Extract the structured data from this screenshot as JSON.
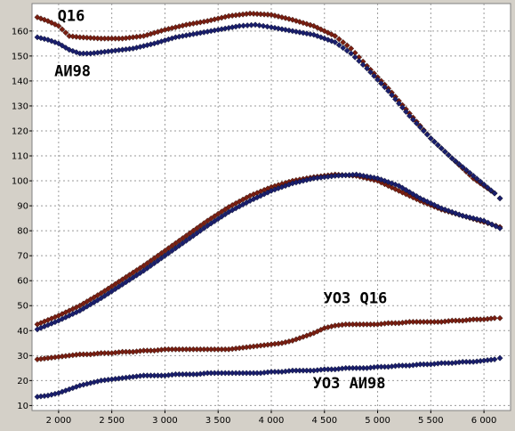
{
  "chart_data": {
    "type": "scatter",
    "title": "",
    "xlabel": "",
    "ylabel": "",
    "xlim": [
      1750,
      6250
    ],
    "ylim": [
      8,
      171
    ],
    "grid": true,
    "x_ticks": [
      2000,
      2500,
      3000,
      3500,
      4000,
      4500,
      5000,
      5500,
      6000
    ],
    "x_tick_labels": [
      "2 000",
      "2 500",
      "3 000",
      "3 500",
      "4 000",
      "4 500",
      "5 000",
      "5 500",
      "6 000"
    ],
    "y_ticks": [
      10,
      20,
      30,
      40,
      50,
      60,
      70,
      80,
      90,
      100,
      110,
      120,
      130,
      140,
      150,
      160
    ],
    "y_tick_labels": [
      "10",
      "20",
      "30",
      "40",
      "50",
      "60",
      "70",
      "80",
      "90",
      "100",
      "110",
      "120",
      "130",
      "140",
      "150",
      "160"
    ],
    "series": [
      {
        "color": "#7a1f12",
        "points": [
          [
            1800,
            165.5
          ],
          [
            1900,
            164
          ],
          [
            2000,
            162
          ],
          [
            2100,
            158
          ],
          [
            2200,
            157.5
          ],
          [
            2400,
            157
          ],
          [
            2600,
            157
          ],
          [
            2800,
            158
          ],
          [
            3000,
            160.5
          ],
          [
            3200,
            162.5
          ],
          [
            3400,
            164
          ],
          [
            3600,
            166
          ],
          [
            3800,
            167
          ],
          [
            4000,
            166.5
          ],
          [
            4200,
            164.5
          ],
          [
            4400,
            162
          ],
          [
            4600,
            158
          ],
          [
            4750,
            153
          ],
          [
            4900,
            146
          ],
          [
            5100,
            137
          ],
          [
            5300,
            127
          ],
          [
            5500,
            117
          ],
          [
            5700,
            109
          ],
          [
            5900,
            101
          ],
          [
            6100,
            95
          ],
          [
            6150,
            93
          ]
        ]
      },
      {
        "color": "#1a1f6e",
        "points": [
          [
            1800,
            157.5
          ],
          [
            1900,
            156.5
          ],
          [
            2000,
            155
          ],
          [
            2100,
            152.5
          ],
          [
            2200,
            151
          ],
          [
            2300,
            151
          ],
          [
            2500,
            152
          ],
          [
            2700,
            153
          ],
          [
            2900,
            155
          ],
          [
            3100,
            157.5
          ],
          [
            3300,
            159
          ],
          [
            3500,
            160.5
          ],
          [
            3700,
            162
          ],
          [
            3850,
            162.5
          ],
          [
            4000,
            161.5
          ],
          [
            4200,
            160
          ],
          [
            4400,
            158.5
          ],
          [
            4600,
            155.5
          ],
          [
            4750,
            151
          ],
          [
            4900,
            145
          ],
          [
            5100,
            136
          ],
          [
            5300,
            126
          ],
          [
            5500,
            117
          ],
          [
            5700,
            109
          ],
          [
            5900,
            102
          ],
          [
            6100,
            95
          ],
          [
            6150,
            93
          ]
        ]
      },
      {
        "color": "#7a1f12",
        "points": [
          [
            1800,
            42.5
          ],
          [
            2000,
            46
          ],
          [
            2200,
            50
          ],
          [
            2400,
            55
          ],
          [
            2600,
            60.5
          ],
          [
            2800,
            66
          ],
          [
            3000,
            72
          ],
          [
            3200,
            78
          ],
          [
            3400,
            84
          ],
          [
            3600,
            89.5
          ],
          [
            3800,
            94
          ],
          [
            4000,
            97.5
          ],
          [
            4200,
            100
          ],
          [
            4400,
            101.5
          ],
          [
            4600,
            102.5
          ],
          [
            4800,
            102
          ],
          [
            5000,
            100
          ],
          [
            5200,
            96
          ],
          [
            5400,
            92
          ],
          [
            5600,
            88.5
          ],
          [
            5800,
            86
          ],
          [
            6000,
            83.5
          ],
          [
            6150,
            81.5
          ]
        ]
      },
      {
        "color": "#1a1f6e",
        "points": [
          [
            1800,
            40.5
          ],
          [
            2000,
            44
          ],
          [
            2200,
            48
          ],
          [
            2400,
            53
          ],
          [
            2600,
            58.5
          ],
          [
            2800,
            64
          ],
          [
            3000,
            70
          ],
          [
            3200,
            76
          ],
          [
            3400,
            82
          ],
          [
            3600,
            87.5
          ],
          [
            3800,
            92
          ],
          [
            4000,
            96
          ],
          [
            4200,
            99
          ],
          [
            4400,
            101
          ],
          [
            4600,
            102
          ],
          [
            4800,
            102.5
          ],
          [
            5000,
            101
          ],
          [
            5200,
            98
          ],
          [
            5400,
            93
          ],
          [
            5600,
            89
          ],
          [
            5800,
            86
          ],
          [
            6000,
            84
          ],
          [
            6150,
            81
          ]
        ]
      },
      {
        "color": "#7a1f12",
        "points": [
          [
            1800,
            28.5
          ],
          [
            1900,
            29
          ],
          [
            2000,
            29.5
          ],
          [
            2100,
            30
          ],
          [
            2200,
            30.5
          ],
          [
            2300,
            30.5
          ],
          [
            2400,
            31
          ],
          [
            2500,
            31
          ],
          [
            2600,
            31.5
          ],
          [
            2700,
            31.5
          ],
          [
            2800,
            32
          ],
          [
            2900,
            32
          ],
          [
            3000,
            32.5
          ],
          [
            3100,
            32.5
          ],
          [
            3200,
            32.5
          ],
          [
            3300,
            32.5
          ],
          [
            3400,
            32.5
          ],
          [
            3500,
            32.5
          ],
          [
            3600,
            32.5
          ],
          [
            3700,
            33
          ],
          [
            3800,
            33.5
          ],
          [
            3900,
            34
          ],
          [
            4000,
            34.5
          ],
          [
            4100,
            35
          ],
          [
            4200,
            36
          ],
          [
            4300,
            37.5
          ],
          [
            4400,
            39
          ],
          [
            4500,
            41
          ],
          [
            4600,
            42
          ],
          [
            4700,
            42.5
          ],
          [
            4800,
            42.5
          ],
          [
            4900,
            42.5
          ],
          [
            5000,
            42.5
          ],
          [
            5100,
            43
          ],
          [
            5200,
            43
          ],
          [
            5300,
            43.5
          ],
          [
            5400,
            43.5
          ],
          [
            5500,
            43.5
          ],
          [
            5600,
            43.5
          ],
          [
            5700,
            44
          ],
          [
            5800,
            44
          ],
          [
            5900,
            44.5
          ],
          [
            6000,
            44.5
          ],
          [
            6100,
            45
          ],
          [
            6150,
            45
          ]
        ]
      },
      {
        "color": "#1a1f6e",
        "points": [
          [
            1800,
            13.5
          ],
          [
            1900,
            14
          ],
          [
            2000,
            15
          ],
          [
            2100,
            16.5
          ],
          [
            2200,
            18
          ],
          [
            2300,
            19
          ],
          [
            2400,
            20
          ],
          [
            2500,
            20.5
          ],
          [
            2600,
            21
          ],
          [
            2700,
            21.5
          ],
          [
            2800,
            22
          ],
          [
            2900,
            22
          ],
          [
            3000,
            22
          ],
          [
            3100,
            22.5
          ],
          [
            3200,
            22.5
          ],
          [
            3300,
            22.5
          ],
          [
            3400,
            23
          ],
          [
            3500,
            23
          ],
          [
            3600,
            23
          ],
          [
            3700,
            23
          ],
          [
            3800,
            23
          ],
          [
            3900,
            23
          ],
          [
            4000,
            23.5
          ],
          [
            4100,
            23.5
          ],
          [
            4200,
            24
          ],
          [
            4300,
            24
          ],
          [
            4400,
            24
          ],
          [
            4500,
            24.5
          ],
          [
            4600,
            24.5
          ],
          [
            4700,
            25
          ],
          [
            4800,
            25
          ],
          [
            4900,
            25
          ],
          [
            5000,
            25.5
          ],
          [
            5100,
            25.5
          ],
          [
            5200,
            26
          ],
          [
            5300,
            26
          ],
          [
            5400,
            26.5
          ],
          [
            5500,
            26.5
          ],
          [
            5600,
            27
          ],
          [
            5700,
            27
          ],
          [
            5800,
            27.5
          ],
          [
            5900,
            27.5
          ],
          [
            6000,
            28
          ],
          [
            6100,
            28.5
          ],
          [
            6150,
            29
          ]
        ]
      }
    ],
    "annotations": [
      {
        "text": "Q16",
        "x": 1990,
        "y": 164
      },
      {
        "text": "АИ98",
        "x": 1960,
        "y": 142
      },
      {
        "text": "УОЗ Q16",
        "x": 4490,
        "y": 51
      },
      {
        "text": "УОЗ АИ98",
        "x": 4390,
        "y": 17
      }
    ]
  }
}
